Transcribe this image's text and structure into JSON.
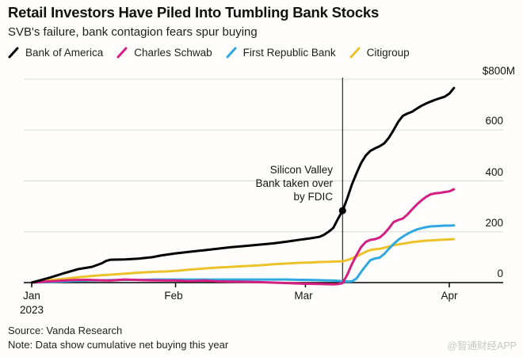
{
  "header": {
    "title": "Retail Investors Have Piled Into Tumbling Bank Stocks",
    "subtitle": "SVB's failure, bank contagion fears spur buying"
  },
  "legend": [
    {
      "label": "Bank of America",
      "color": "#000000"
    },
    {
      "label": "Charles Schwab",
      "color": "#d41e82"
    },
    {
      "label": "First Republic Bank",
      "color": "#2fa8e1"
    },
    {
      "label": "Citigroup",
      "color": "#ecc22b"
    }
  ],
  "chart_data": {
    "type": "line",
    "title": "Retail Investors Have Piled Into Tumbling Bank Stocks",
    "subtitle": "SVB's failure, bank contagion fears spur buying",
    "unit": "USD millions, cumulative net buying",
    "x_axis": {
      "ticks": [
        "Jan",
        "Feb",
        "Mar",
        "Apr"
      ],
      "year_label": "2023",
      "tick_days": [
        0,
        31,
        59,
        90
      ],
      "start_day": 0,
      "end_day": 91
    },
    "y_axis": {
      "labels": [
        "$800M",
        "600",
        "400",
        "200",
        "0"
      ],
      "tick_values": [
        800,
        600,
        400,
        200,
        0
      ],
      "range": [
        0,
        800
      ],
      "grid": true,
      "side": "right"
    },
    "annotation": {
      "text_lines": [
        "Silicon Valley",
        "Bank taken over",
        "by FDIC"
      ],
      "event_day": 67,
      "marker": {
        "day": 67,
        "value": 283
      }
    },
    "series": [
      {
        "name": "Citigroup",
        "color": "#ecc22b",
        "points": [
          [
            0,
            0
          ],
          [
            2,
            5
          ],
          [
            4,
            10
          ],
          [
            7,
            15
          ],
          [
            10,
            21
          ],
          [
            13,
            26
          ],
          [
            15,
            29
          ],
          [
            17,
            31
          ],
          [
            20,
            35
          ],
          [
            23,
            39
          ],
          [
            26,
            42
          ],
          [
            29,
            44
          ],
          [
            31,
            46
          ],
          [
            34,
            51
          ],
          [
            37,
            55
          ],
          [
            40,
            59
          ],
          [
            43,
            62
          ],
          [
            46,
            65
          ],
          [
            49,
            68
          ],
          [
            52,
            72
          ],
          [
            55,
            75
          ],
          [
            58,
            78
          ],
          [
            60,
            79
          ],
          [
            62,
            81
          ],
          [
            64,
            82
          ],
          [
            66,
            83
          ],
          [
            67,
            84
          ],
          [
            68,
            88
          ],
          [
            69,
            95
          ],
          [
            70,
            103
          ],
          [
            71,
            112
          ],
          [
            72,
            121
          ],
          [
            73,
            128
          ],
          [
            74,
            131
          ],
          [
            75,
            133
          ],
          [
            76,
            137
          ],
          [
            77,
            142
          ],
          [
            78,
            147
          ],
          [
            79,
            150
          ],
          [
            80,
            153
          ],
          [
            81,
            156
          ],
          [
            82,
            159
          ],
          [
            83,
            161
          ],
          [
            84,
            163
          ],
          [
            85,
            165
          ],
          [
            86,
            166
          ],
          [
            87,
            167
          ],
          [
            88,
            168
          ],
          [
            89,
            169
          ],
          [
            90,
            170
          ],
          [
            91,
            171
          ]
        ]
      },
      {
        "name": "First Republic Bank",
        "color": "#2fa8e1",
        "points": [
          [
            0,
            0
          ],
          [
            3,
            2
          ],
          [
            6,
            4
          ],
          [
            9,
            6
          ],
          [
            12,
            8
          ],
          [
            15,
            9
          ],
          [
            18,
            10
          ],
          [
            21,
            11
          ],
          [
            24,
            11
          ],
          [
            27,
            12
          ],
          [
            31,
            12
          ],
          [
            35,
            12
          ],
          [
            39,
            12
          ],
          [
            43,
            12
          ],
          [
            47,
            12
          ],
          [
            51,
            12
          ],
          [
            55,
            12
          ],
          [
            58,
            11
          ],
          [
            61,
            10
          ],
          [
            63,
            9
          ],
          [
            65,
            8
          ],
          [
            66,
            7
          ],
          [
            67,
            5
          ],
          [
            68,
            4
          ],
          [
            69,
            5
          ],
          [
            70,
            16
          ],
          [
            71,
            42
          ],
          [
            72,
            66
          ],
          [
            73,
            88
          ],
          [
            74,
            95
          ],
          [
            75,
            98
          ],
          [
            76,
            113
          ],
          [
            77,
            133
          ],
          [
            78,
            152
          ],
          [
            79,
            168
          ],
          [
            80,
            181
          ],
          [
            81,
            192
          ],
          [
            82,
            201
          ],
          [
            83,
            209
          ],
          [
            84,
            214
          ],
          [
            85,
            218
          ],
          [
            86,
            221
          ],
          [
            87,
            222
          ],
          [
            88,
            223
          ],
          [
            89,
            224
          ],
          [
            90,
            224
          ],
          [
            91,
            225
          ]
        ]
      },
      {
        "name": "Charles Schwab",
        "color": "#d41e82",
        "points": [
          [
            0,
            0
          ],
          [
            3,
            4
          ],
          [
            6,
            7
          ],
          [
            9,
            10
          ],
          [
            12,
            11
          ],
          [
            15,
            9
          ],
          [
            17,
            8
          ],
          [
            20,
            12
          ],
          [
            23,
            10
          ],
          [
            26,
            9
          ],
          [
            29,
            8
          ],
          [
            31,
            8
          ],
          [
            34,
            6
          ],
          [
            37,
            8
          ],
          [
            40,
            5
          ],
          [
            43,
            4
          ],
          [
            46,
            3
          ],
          [
            49,
            2
          ],
          [
            52,
            0
          ],
          [
            55,
            -2
          ],
          [
            58,
            -4
          ],
          [
            61,
            -5
          ],
          [
            63,
            -6
          ],
          [
            65,
            -7
          ],
          [
            66,
            -6
          ],
          [
            67,
            -2
          ],
          [
            68,
            30
          ],
          [
            69,
            72
          ],
          [
            70,
            108
          ],
          [
            71,
            140
          ],
          [
            72,
            160
          ],
          [
            73,
            168
          ],
          [
            74,
            171
          ],
          [
            75,
            177
          ],
          [
            76,
            193
          ],
          [
            77,
            214
          ],
          [
            78,
            238
          ],
          [
            79,
            246
          ],
          [
            80,
            252
          ],
          [
            81,
            268
          ],
          [
            82,
            288
          ],
          [
            83,
            307
          ],
          [
            84,
            323
          ],
          [
            85,
            337
          ],
          [
            86,
            347
          ],
          [
            87,
            351
          ],
          [
            88,
            353
          ],
          [
            89,
            356
          ],
          [
            90,
            359
          ],
          [
            91,
            367
          ]
        ]
      },
      {
        "name": "Bank of America",
        "color": "#000000",
        "points": [
          [
            0,
            0
          ],
          [
            2,
            10
          ],
          [
            4,
            20
          ],
          [
            7,
            37
          ],
          [
            10,
            53
          ],
          [
            13,
            62
          ],
          [
            15,
            75
          ],
          [
            16,
            85
          ],
          [
            17,
            90
          ],
          [
            20,
            91
          ],
          [
            23,
            94
          ],
          [
            26,
            100
          ],
          [
            28,
            107
          ],
          [
            31,
            115
          ],
          [
            34,
            121
          ],
          [
            37,
            127
          ],
          [
            40,
            133
          ],
          [
            43,
            139
          ],
          [
            46,
            144
          ],
          [
            49,
            149
          ],
          [
            52,
            154
          ],
          [
            55,
            161
          ],
          [
            58,
            169
          ],
          [
            60,
            174
          ],
          [
            62,
            180
          ],
          [
            63,
            188
          ],
          [
            64,
            200
          ],
          [
            65,
            215
          ],
          [
            66,
            250
          ],
          [
            67,
            283
          ],
          [
            68,
            330
          ],
          [
            69,
            385
          ],
          [
            70,
            430
          ],
          [
            71,
            470
          ],
          [
            72,
            500
          ],
          [
            73,
            518
          ],
          [
            74,
            528
          ],
          [
            75,
            536
          ],
          [
            76,
            548
          ],
          [
            77,
            570
          ],
          [
            78,
            600
          ],
          [
            79,
            632
          ],
          [
            80,
            656
          ],
          [
            81,
            665
          ],
          [
            82,
            672
          ],
          [
            83,
            684
          ],
          [
            84,
            695
          ],
          [
            85,
            704
          ],
          [
            86,
            712
          ],
          [
            87,
            719
          ],
          [
            88,
            725
          ],
          [
            89,
            731
          ],
          [
            90,
            743
          ],
          [
            91,
            765
          ]
        ]
      }
    ]
  },
  "footer": {
    "source": "Source: Vanda Research",
    "note": "Note: Data show cumulative net buying this year",
    "watermark": "@智通财经APP"
  }
}
